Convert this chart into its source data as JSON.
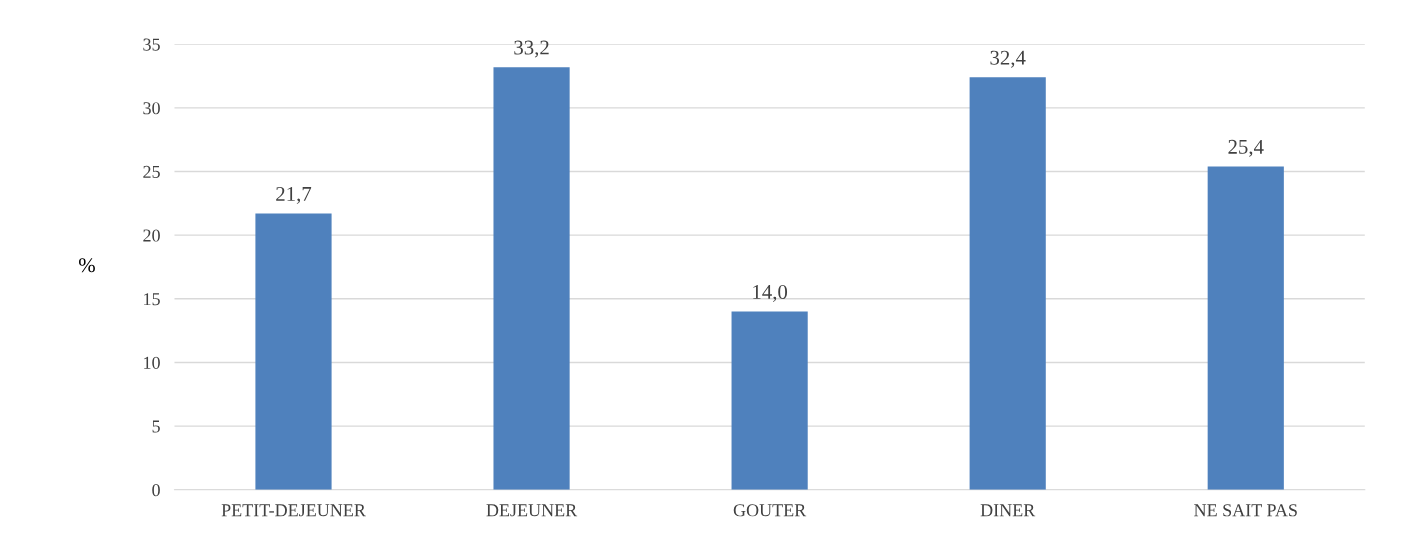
{
  "chart_data": {
    "type": "bar",
    "ylabel": "%",
    "categories": [
      "PETIT-DEJEUNER",
      "DEJEUNER",
      "GOUTER",
      "DINER",
      "NE SAIT PAS"
    ],
    "values": [
      21.7,
      33.2,
      14.0,
      32.4,
      25.4
    ],
    "value_labels": [
      "21,7",
      "33,2",
      "14,0",
      "32,4",
      "25,4"
    ],
    "color": "#4f81bd",
    "ylim": [
      0,
      35
    ],
    "yticks": [
      0,
      5,
      10,
      15,
      20,
      25,
      30,
      35
    ],
    "grid": "y",
    "legend": false
  }
}
